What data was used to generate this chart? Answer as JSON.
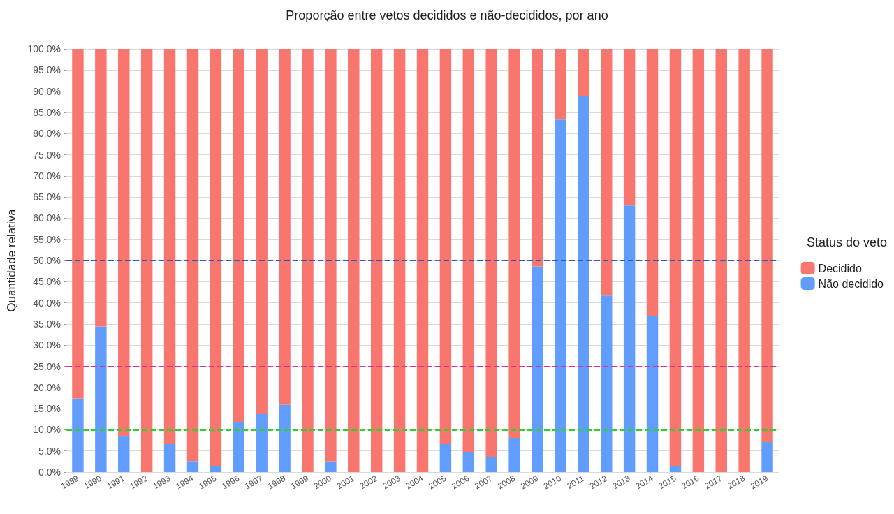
{
  "chart_data": {
    "type": "bar",
    "title": "Proporção entre vetos decididos e não-decididos, por ano",
    "ylabel": "Quantidade relativa",
    "legend_title": "Status do veto",
    "categories": [
      "1989",
      "1990",
      "1991",
      "1992",
      "1993",
      "1994",
      "1995",
      "1996",
      "1997",
      "1998",
      "1999",
      "2000",
      "2001",
      "2002",
      "2003",
      "2004",
      "2005",
      "2006",
      "2007",
      "2008",
      "2009",
      "2010",
      "2011",
      "2012",
      "2013",
      "2014",
      "2015",
      "2016",
      "2017",
      "2018",
      "2019"
    ],
    "stacked": true,
    "series": [
      {
        "name": "Não decidido",
        "color": "#619cff",
        "values": [
          17.4,
          34.4,
          8.4,
          0,
          6.6,
          2.6,
          1.5,
          11.9,
          13.7,
          15.9,
          0,
          2.5,
          0,
          0,
          0,
          0,
          6.6,
          4.8,
          3.6,
          8.1,
          48.6,
          83.3,
          88.9,
          41.7,
          63.0,
          36.9,
          1.5,
          0,
          0,
          0,
          7.1
        ]
      },
      {
        "name": "Decidido",
        "color": "#f8766d",
        "values": [
          82.6,
          65.6,
          91.6,
          100,
          93.4,
          97.4,
          98.5,
          88.1,
          86.3,
          84.1,
          100,
          97.5,
          100,
          100,
          100,
          100,
          93.4,
          95.2,
          96.4,
          91.9,
          51.4,
          16.7,
          11.1,
          58.3,
          37.0,
          63.1,
          98.5,
          100,
          100,
          100,
          92.9
        ]
      }
    ],
    "ylim": [
      0,
      100
    ],
    "yticks": [
      {
        "value": 0,
        "label": "0.0%"
      },
      {
        "value": 5,
        "label": "5.0%"
      },
      {
        "value": 10,
        "label": "10.0%"
      },
      {
        "value": 15,
        "label": "15.0%"
      },
      {
        "value": 20,
        "label": "20.0%"
      },
      {
        "value": 25,
        "label": "25.0%"
      },
      {
        "value": 30,
        "label": "30.0%"
      },
      {
        "value": 35,
        "label": "35.0%"
      },
      {
        "value": 40,
        "label": "40.0%"
      },
      {
        "value": 45,
        "label": "45.0%"
      },
      {
        "value": 50,
        "label": "50.0%"
      },
      {
        "value": 55,
        "label": "55.0%"
      },
      {
        "value": 60,
        "label": "60.0%"
      },
      {
        "value": 65,
        "label": "65.0%"
      },
      {
        "value": 70,
        "label": "70.0%"
      },
      {
        "value": 75,
        "label": "75.0%"
      },
      {
        "value": 80,
        "label": "80.0%"
      },
      {
        "value": 85,
        "label": "85.0%"
      },
      {
        "value": 90,
        "label": "90.0%"
      },
      {
        "value": 95,
        "label": "95.0%"
      },
      {
        "value": 100,
        "label": "100.0%"
      }
    ],
    "ref_lines": [
      {
        "axis": "y",
        "value": 50,
        "color": "#3a56b0",
        "line_style": "dashed"
      },
      {
        "axis": "y",
        "value": 25,
        "color": "#d6338a",
        "line_style": "dashed"
      },
      {
        "axis": "y",
        "value": 10,
        "color": "#33cc33",
        "line_style": "dashed"
      }
    ],
    "grid": "y",
    "legend": "right"
  }
}
